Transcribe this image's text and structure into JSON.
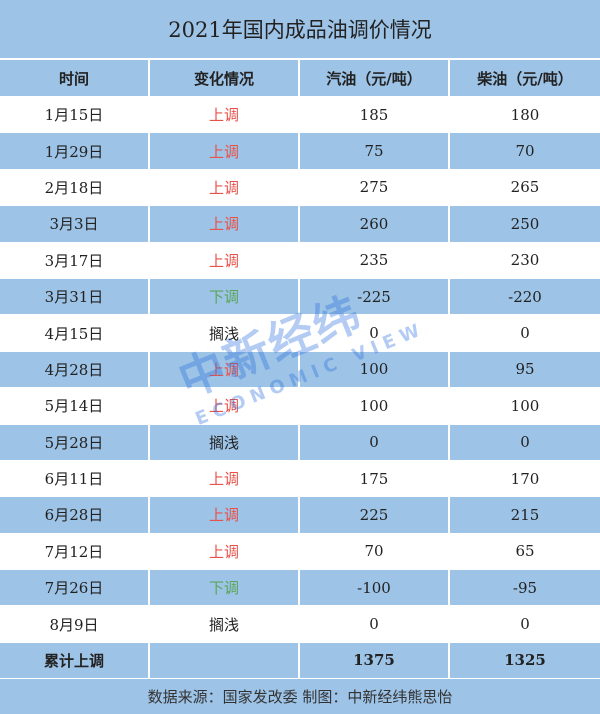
{
  "title": "2021年国内成品油调价情况",
  "headers": [
    "时间",
    "变化情况",
    "汽油（元/吨）",
    "柴油（元/吨）"
  ],
  "colors": {
    "up": "#e8524a",
    "down": "#5ca65c",
    "flat": "#222222",
    "header_bg": "#9dc3e6"
  },
  "rows": [
    {
      "date": "1月15日",
      "change": "上调",
      "type": "up",
      "gasoline": "185",
      "diesel": "180"
    },
    {
      "date": "1月29日",
      "change": "上调",
      "type": "up",
      "gasoline": "75",
      "diesel": "70"
    },
    {
      "date": "2月18日",
      "change": "上调",
      "type": "up",
      "gasoline": "275",
      "diesel": "265"
    },
    {
      "date": "3月3日",
      "change": "上调",
      "type": "up",
      "gasoline": "260",
      "diesel": "250"
    },
    {
      "date": "3月17日",
      "change": "上调",
      "type": "up",
      "gasoline": "235",
      "diesel": "230"
    },
    {
      "date": "3月31日",
      "change": "下调",
      "type": "down",
      "gasoline": "-225",
      "diesel": "-220"
    },
    {
      "date": "4月15日",
      "change": "搁浅",
      "type": "flat",
      "gasoline": "0",
      "diesel": "0"
    },
    {
      "date": "4月28日",
      "change": "上调",
      "type": "up",
      "gasoline": "100",
      "diesel": "95"
    },
    {
      "date": "5月14日",
      "change": "上调",
      "type": "up",
      "gasoline": "100",
      "diesel": "100"
    },
    {
      "date": "5月28日",
      "change": "搁浅",
      "type": "flat",
      "gasoline": "0",
      "diesel": "0"
    },
    {
      "date": "6月11日",
      "change": "上调",
      "type": "up",
      "gasoline": "175",
      "diesel": "170"
    },
    {
      "date": "6月28日",
      "change": "上调",
      "type": "up",
      "gasoline": "225",
      "diesel": "215"
    },
    {
      "date": "7月12日",
      "change": "上调",
      "type": "up",
      "gasoline": "70",
      "diesel": "65"
    },
    {
      "date": "7月26日",
      "change": "下调",
      "type": "down",
      "gasoline": "-100",
      "diesel": "-95"
    },
    {
      "date": "8月9日",
      "change": "搁浅",
      "type": "flat",
      "gasoline": "0",
      "diesel": "0"
    }
  ],
  "total": {
    "label": "累计上调",
    "change": "",
    "gasoline": "1375",
    "diesel": "1325"
  },
  "footer": "数据来源：国家发改委  制图：中新经纬熊思怡",
  "watermark": {
    "cn": "中新经纬",
    "en": "ECONOMIC VIEW"
  }
}
